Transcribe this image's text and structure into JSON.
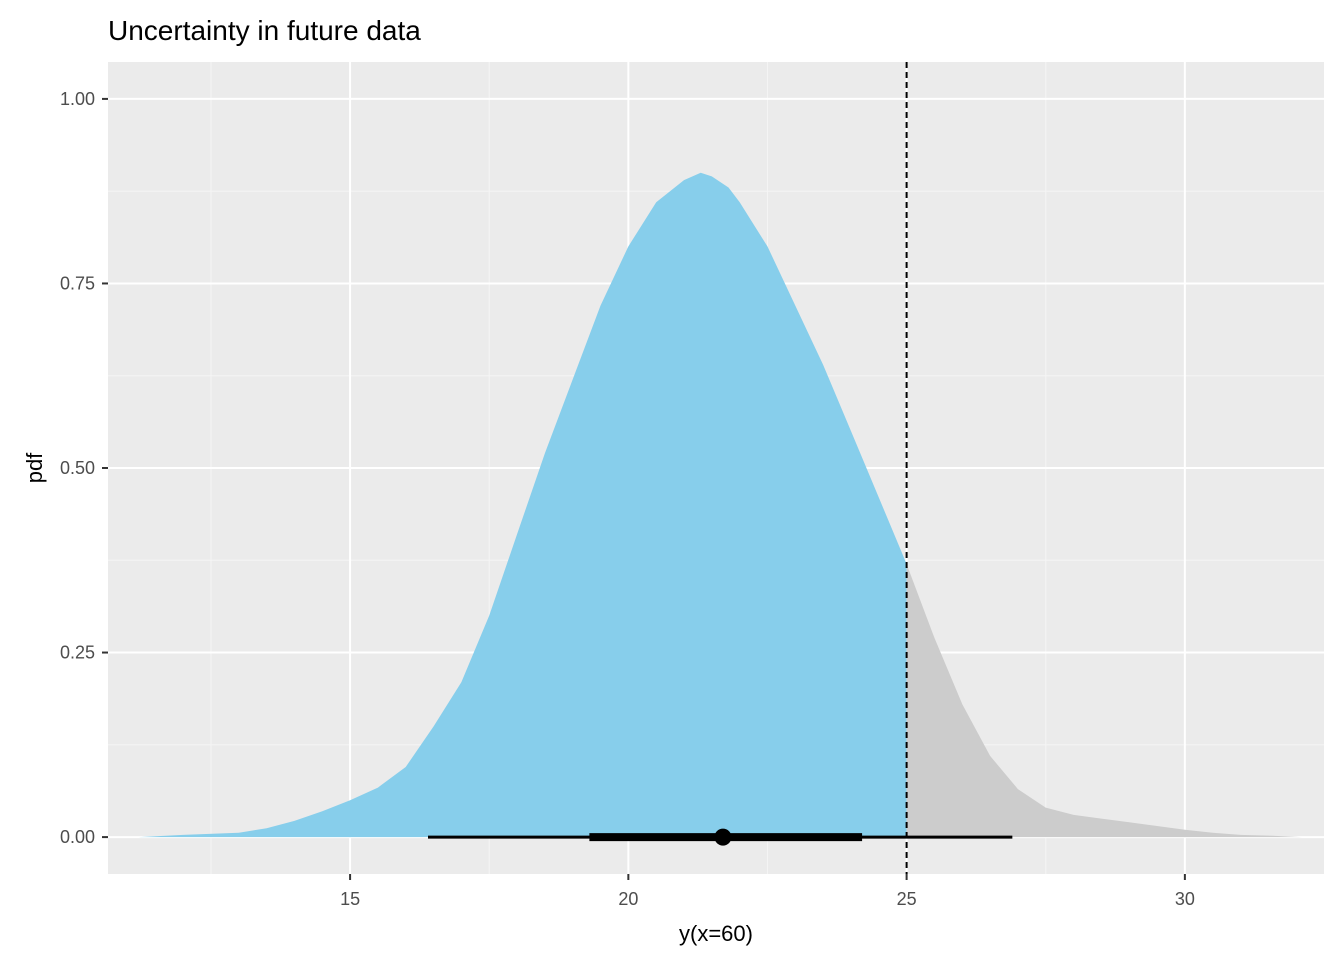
{
  "chart_data": {
    "type": "area",
    "title": "Uncertainty in future data",
    "xlabel": "y(x=60)",
    "ylabel": "pdf",
    "xlim": [
      10.65,
      32.5
    ],
    "ylim": [
      -0.05,
      1.05
    ],
    "grid": true,
    "legend": "none",
    "x_ticks": [
      15,
      20,
      25,
      30
    ],
    "x_tick_labels": [
      "15",
      "20",
      "25",
      "30"
    ],
    "y_ticks": [
      0,
      0.25,
      0.5,
      0.75,
      1.0
    ],
    "y_tick_labels": [
      "0.00",
      "0.25",
      "0.50",
      "0.75",
      "1.00"
    ],
    "density": {
      "x": [
        11.2,
        12.0,
        13.0,
        13.5,
        14.0,
        14.5,
        15.0,
        15.5,
        16.0,
        16.5,
        17.0,
        17.5,
        18.0,
        18.5,
        19.0,
        19.5,
        20.0,
        20.5,
        21.0,
        21.3,
        21.5,
        21.8,
        22.0,
        22.5,
        23.0,
        23.5,
        24.0,
        24.5,
        25.0,
        25.5,
        26.0,
        26.5,
        27.0,
        27.5,
        28.0,
        28.5,
        29.0,
        29.5,
        30.0,
        30.5,
        31.0,
        31.5,
        32.1
      ],
      "y": [
        0.0,
        0.003,
        0.006,
        0.012,
        0.022,
        0.035,
        0.05,
        0.067,
        0.095,
        0.15,
        0.21,
        0.3,
        0.41,
        0.52,
        0.62,
        0.72,
        0.8,
        0.86,
        0.89,
        0.9,
        0.895,
        0.88,
        0.86,
        0.8,
        0.72,
        0.64,
        0.55,
        0.46,
        0.37,
        0.27,
        0.18,
        0.11,
        0.065,
        0.04,
        0.03,
        0.025,
        0.02,
        0.015,
        0.01,
        0.006,
        0.003,
        0.002,
        0.0
      ]
    },
    "shaded_below": 25,
    "fill_colors": {
      "below": "#87CEEB",
      "above": "#CCCCCC"
    },
    "reference_line_x": 25,
    "interval": {
      "point": 21.7,
      "inner": [
        19.3,
        24.2
      ],
      "outer": [
        16.4,
        26.9
      ]
    },
    "colors": {
      "panel": "#EBEBEB",
      "grid_major": "#FFFFFF",
      "grid_minor": "#F5F5F5",
      "interval": "#000000"
    }
  }
}
